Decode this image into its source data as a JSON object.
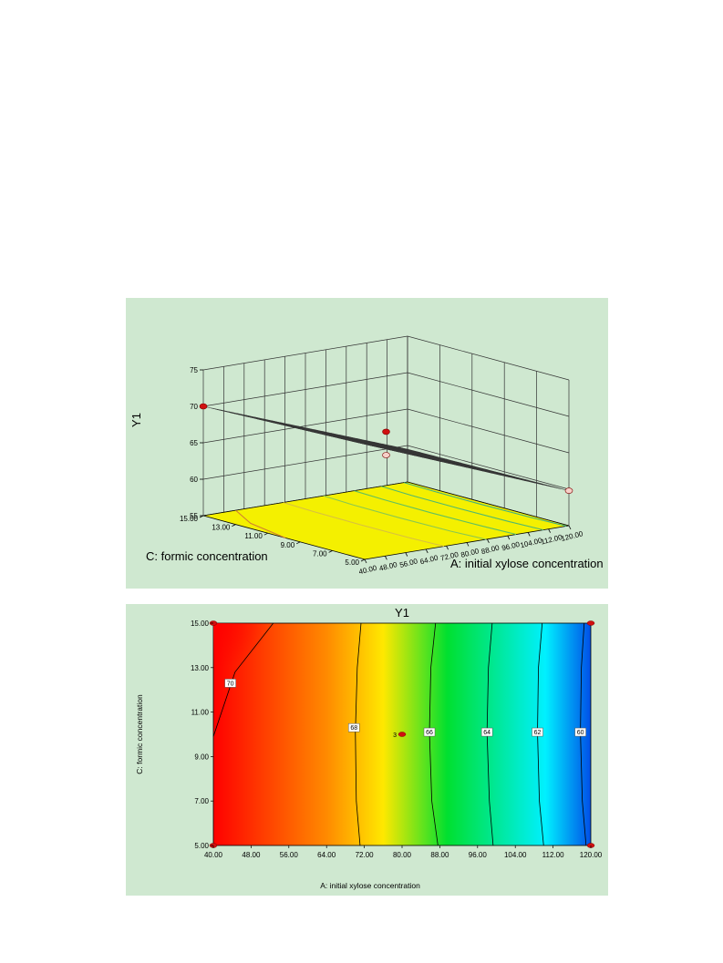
{
  "chart_data": [
    {
      "type": "surface",
      "title": "",
      "zlabel": "Y1",
      "xlabel": "A: initial xylose concentration",
      "ylabel": "C: formic concentration",
      "z_ticks": [
        "55",
        "60",
        "65",
        "70",
        "75"
      ],
      "x_ticks": [
        "40.00",
        "48.00",
        "56.00",
        "64.00",
        "72.00",
        "80.00",
        "88.00",
        "96.00",
        "104.00",
        "112.00",
        "120.00"
      ],
      "y_ticks": [
        "5.00",
        "7.00",
        "9.00",
        "11.00",
        "13.00",
        "15.00"
      ],
      "xlim": [
        40,
        120
      ],
      "ylim": [
        5,
        15
      ],
      "zlim": [
        55,
        75
      ],
      "surface_corners": [
        {
          "A": 40,
          "C": 15,
          "Y1": 70.0
        },
        {
          "A": 40,
          "C": 5,
          "Y1": 70.8
        },
        {
          "A": 120,
          "C": 15,
          "Y1": 59.5
        },
        {
          "A": 120,
          "C": 5,
          "Y1": 59.8
        }
      ],
      "design_points": [
        {
          "A": 40,
          "C": 15,
          "Y1": 70.0
        },
        {
          "A": 80,
          "C": 10,
          "Y1": 67.2
        },
        {
          "A": 80,
          "C": 10,
          "Y1": 64.0
        },
        {
          "A": 120,
          "C": 5,
          "Y1": 59.8
        }
      ],
      "grid": true
    },
    {
      "type": "contour",
      "title": "Y1",
      "xlabel": "A: initial xylose concentration",
      "ylabel": "C: formic concentration",
      "x_ticks": [
        "40.00",
        "48.00",
        "56.00",
        "64.00",
        "72.00",
        "80.00",
        "88.00",
        "96.00",
        "104.00",
        "112.00",
        "120.00"
      ],
      "y_ticks": [
        "5.00",
        "7.00",
        "9.00",
        "11.00",
        "13.00",
        "15.00"
      ],
      "xlim": [
        40,
        120
      ],
      "ylim": [
        5,
        15
      ],
      "contours": [
        {
          "level": "70",
          "points": [
            [
              40,
              9.9
            ],
            [
              44.6,
              12.8
            ],
            [
              52.7,
              15
            ]
          ],
          "label_at": [
            43.6,
            12.3
          ]
        },
        {
          "level": "68",
          "points": [
            [
              71.1,
              5
            ],
            [
              70.3,
              7
            ],
            [
              70.1,
              10.1
            ],
            [
              70.5,
              13
            ],
            [
              71.3,
              15
            ]
          ],
          "label_at": [
            69.8,
            10.3
          ]
        },
        {
          "level": "66",
          "points": [
            [
              87.6,
              5
            ],
            [
              86.3,
              7
            ],
            [
              85.8,
              10.1
            ],
            [
              86.1,
              13
            ],
            [
              87.1,
              15
            ]
          ],
          "label_at": [
            85.8,
            10.1
          ]
        },
        {
          "level": "64",
          "points": [
            [
              99.3,
              5
            ],
            [
              98.5,
              7
            ],
            [
              98.0,
              10.1
            ],
            [
              98.3,
              13
            ],
            [
              99.1,
              15
            ]
          ],
          "label_at": [
            98.0,
            10.1
          ]
        },
        {
          "level": "62",
          "points": [
            [
              110.0,
              5
            ],
            [
              109.1,
              7
            ],
            [
              108.7,
              10.1
            ],
            [
              108.9,
              13
            ],
            [
              109.7,
              15
            ]
          ],
          "label_at": [
            108.7,
            10.1
          ]
        },
        {
          "level": "60",
          "points": [
            [
              119.0,
              5
            ],
            [
              118.2,
              7
            ],
            [
              117.8,
              10.1
            ],
            [
              118.0,
              13
            ],
            [
              118.6,
              15
            ]
          ],
          "label_at": [
            117.8,
            10.1
          ]
        }
      ],
      "design_points": [
        {
          "A": 40,
          "C": 15
        },
        {
          "A": 40,
          "C": 5
        },
        {
          "A": 120,
          "C": 15
        },
        {
          "A": 120,
          "C": 5
        },
        {
          "A": 80,
          "C": 10,
          "replicates": "3"
        }
      ],
      "color_scale": [
        "#ff0000",
        "#ff8a00",
        "#ffe800",
        "#00e030",
        "#00f0ff",
        "#0050e8"
      ]
    }
  ]
}
